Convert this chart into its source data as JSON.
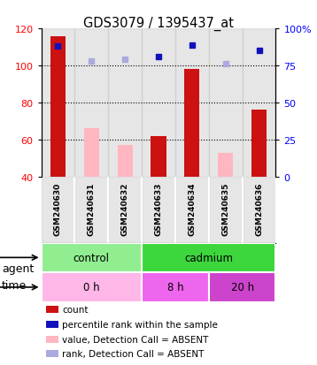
{
  "title": "GDS3079 / 1395437_at",
  "samples": [
    "GSM240630",
    "GSM240631",
    "GSM240632",
    "GSM240633",
    "GSM240634",
    "GSM240635",
    "GSM240636"
  ],
  "count_values": [
    116,
    null,
    null,
    62,
    98,
    null,
    76
  ],
  "count_absent": [
    null,
    66,
    57,
    null,
    null,
    53,
    null
  ],
  "rank_present": [
    88,
    null,
    null,
    81,
    89,
    null,
    85
  ],
  "rank_absent": [
    null,
    78,
    79,
    null,
    null,
    76,
    null
  ],
  "ylim_left": [
    40,
    120
  ],
  "ylim_right": [
    0,
    100
  ],
  "yticks_left": [
    40,
    60,
    80,
    100,
    120
  ],
  "yticks_right": [
    0,
    25,
    50,
    75,
    100
  ],
  "ytick_labels_right": [
    "0",
    "25",
    "50",
    "75",
    "100%"
  ],
  "agent_groups": [
    {
      "label": "control",
      "start": 0,
      "end": 3,
      "color": "#90EE90"
    },
    {
      "label": "cadmium",
      "start": 3,
      "end": 7,
      "color": "#3DD63D"
    }
  ],
  "time_groups": [
    {
      "label": "0 h",
      "start": 0,
      "end": 3,
      "color": "#FFB6E8"
    },
    {
      "label": "8 h",
      "start": 3,
      "end": 5,
      "color": "#EE66EE"
    },
    {
      "label": "20 h",
      "start": 5,
      "end": 7,
      "color": "#CC44CC"
    }
  ],
  "bar_color_red": "#CC1111",
  "bar_color_pink": "#FFB6C1",
  "dot_color_blue": "#1111BB",
  "dot_color_lightblue": "#AAAADD",
  "sample_bg_color": "#C8C8C8",
  "legend_items": [
    {
      "color": "#CC1111",
      "label": "count"
    },
    {
      "color": "#1111BB",
      "label": "percentile rank within the sample"
    },
    {
      "color": "#FFB6C1",
      "label": "value, Detection Call = ABSENT"
    },
    {
      "color": "#AAAADD",
      "label": "rank, Detection Call = ABSENT"
    }
  ]
}
